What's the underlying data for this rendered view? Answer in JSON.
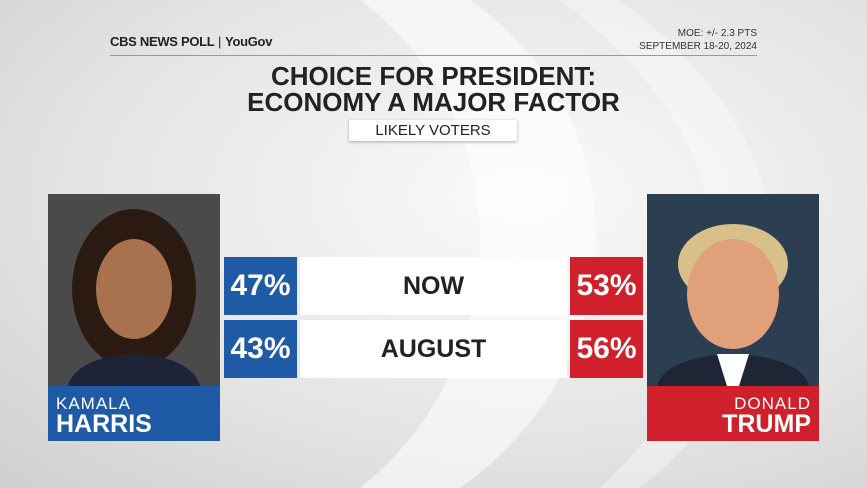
{
  "header": {
    "logo": "CBS NEWS POLL",
    "partner": "YouGov",
    "moe": "MOE: +/- 2.3 PTS",
    "dates": "SEPTEMBER 18-20, 2024"
  },
  "title": [
    "CHOICE FOR PRESIDENT:",
    "ECONOMY A MAJOR FACTOR"
  ],
  "subtitle": "LIKELY VOTERS",
  "candidates": [
    {
      "first": "KAMALA",
      "last": "HARRIS",
      "color": "#1f5aa6"
    },
    {
      "first": "DONALD",
      "last": "TRUMP",
      "color": "#d0202b"
    }
  ],
  "rows": [
    {
      "label": "NOW",
      "harris": "47%",
      "trump": "53%"
    },
    {
      "label": "AUGUST",
      "harris": "43%",
      "trump": "56%"
    }
  ]
}
